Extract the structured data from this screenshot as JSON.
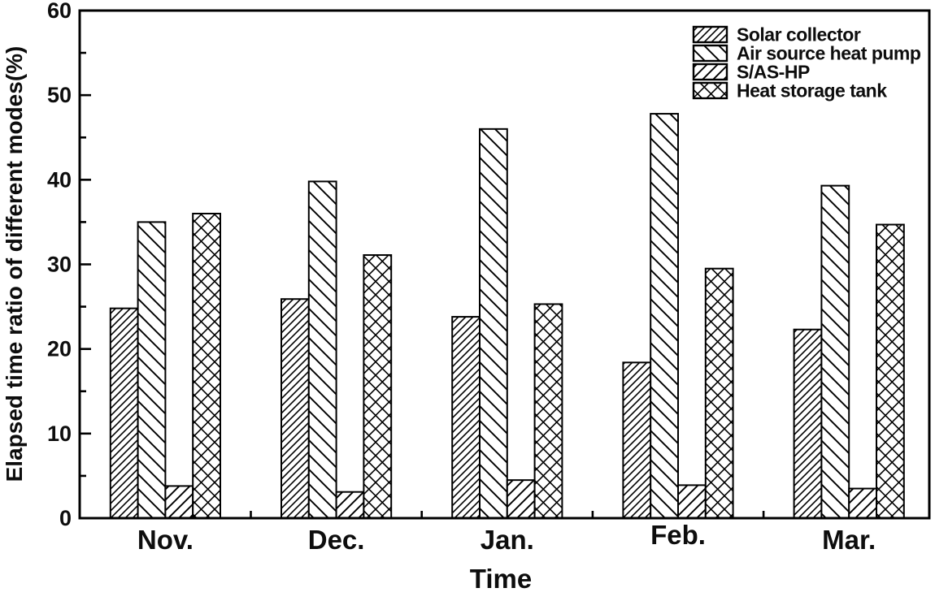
{
  "figure": {
    "background": "#ffffff",
    "foreground": "#000000"
  },
  "chart_data": {
    "type": "bar",
    "title": "",
    "xlabel": "Time",
    "ylabel": "Elapsed time ratio of different modes(%)",
    "categories": [
      "Nov.",
      "Dec.",
      "Jan.",
      "Feb.",
      "Mar."
    ],
    "series": [
      {
        "name": "Solar collector",
        "hatch": "slash-dense",
        "values": [
          24.8,
          25.9,
          23.8,
          18.4,
          22.3
        ]
      },
      {
        "name": "Air source heat pump",
        "hatch": "backslash",
        "values": [
          35.0,
          39.8,
          46.0,
          47.8,
          39.3
        ]
      },
      {
        "name": "S/AS-HP",
        "hatch": "slash",
        "values": [
          3.8,
          3.1,
          4.5,
          3.9,
          3.5
        ]
      },
      {
        "name": "Heat storage tank",
        "hatch": "crosshatch",
        "values": [
          36.0,
          31.1,
          25.3,
          29.5,
          34.7
        ]
      }
    ],
    "ylim": [
      0,
      60
    ],
    "ymajor_step": 10,
    "yminor_step": 5,
    "ytick_labels": [
      "0",
      "10",
      "20",
      "30",
      "40",
      "50",
      "60"
    ],
    "bar_style": {
      "fill": "#ffffff",
      "edge": "#000000"
    },
    "legend_position": "top-right",
    "grid": false
  }
}
